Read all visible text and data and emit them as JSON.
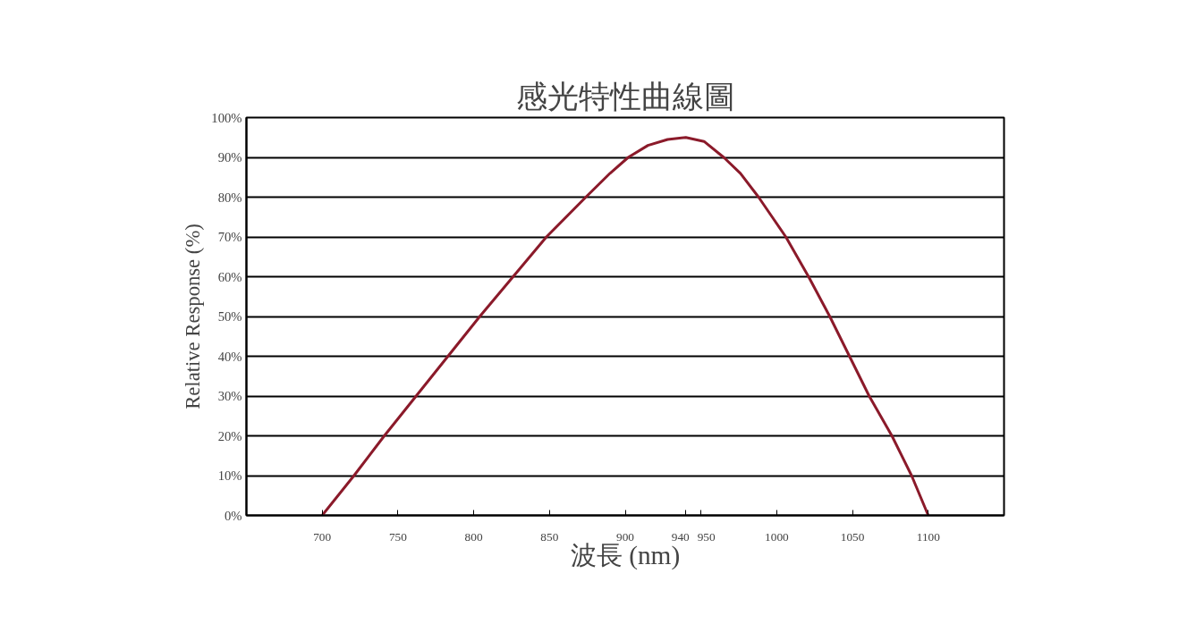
{
  "chart_data": {
    "type": "line",
    "title": "感光特性曲線圖",
    "xlabel": "波長 (nm)",
    "ylabel": "Relative Response (%)",
    "xlim": [
      650,
      1150
    ],
    "xticks": [
      700,
      750,
      800,
      850,
      900,
      940,
      950,
      1000,
      1050,
      1100
    ],
    "ylim": [
      0,
      100
    ],
    "yticks": [
      {
        "value": 0,
        "label": "0%"
      },
      {
        "value": 10,
        "label": "10%"
      },
      {
        "value": 20,
        "label": "20%"
      },
      {
        "value": 30,
        "label": "30%"
      },
      {
        "value": 40,
        "label": "40%"
      },
      {
        "value": 50,
        "label": "50%"
      },
      {
        "value": 60,
        "label": "60%"
      },
      {
        "value": 70,
        "label": "70%"
      },
      {
        "value": 80,
        "label": "80%"
      },
      {
        "value": 90,
        "label": "90%"
      },
      {
        "value": 100,
        "label": "100%"
      }
    ],
    "grid": "y",
    "marker": "none",
    "line_style": "solid",
    "series": [
      {
        "color": "#8b1a2a",
        "x": [
          700,
          721,
          741,
          762,
          783,
          804,
          826,
          848,
          874,
          890,
          902,
          915,
          928,
          940,
          952,
          965,
          976,
          988,
          997,
          1006,
          1021,
          1035,
          1048,
          1061,
          1076,
          1089,
          1100
        ],
        "values": [
          0,
          10,
          20,
          30,
          40,
          50,
          60,
          70,
          80,
          86,
          90,
          93,
          94.5,
          95,
          94,
          90,
          86,
          80,
          75,
          70,
          60,
          50,
          40,
          30,
          20,
          10,
          0
        ]
      }
    ]
  }
}
